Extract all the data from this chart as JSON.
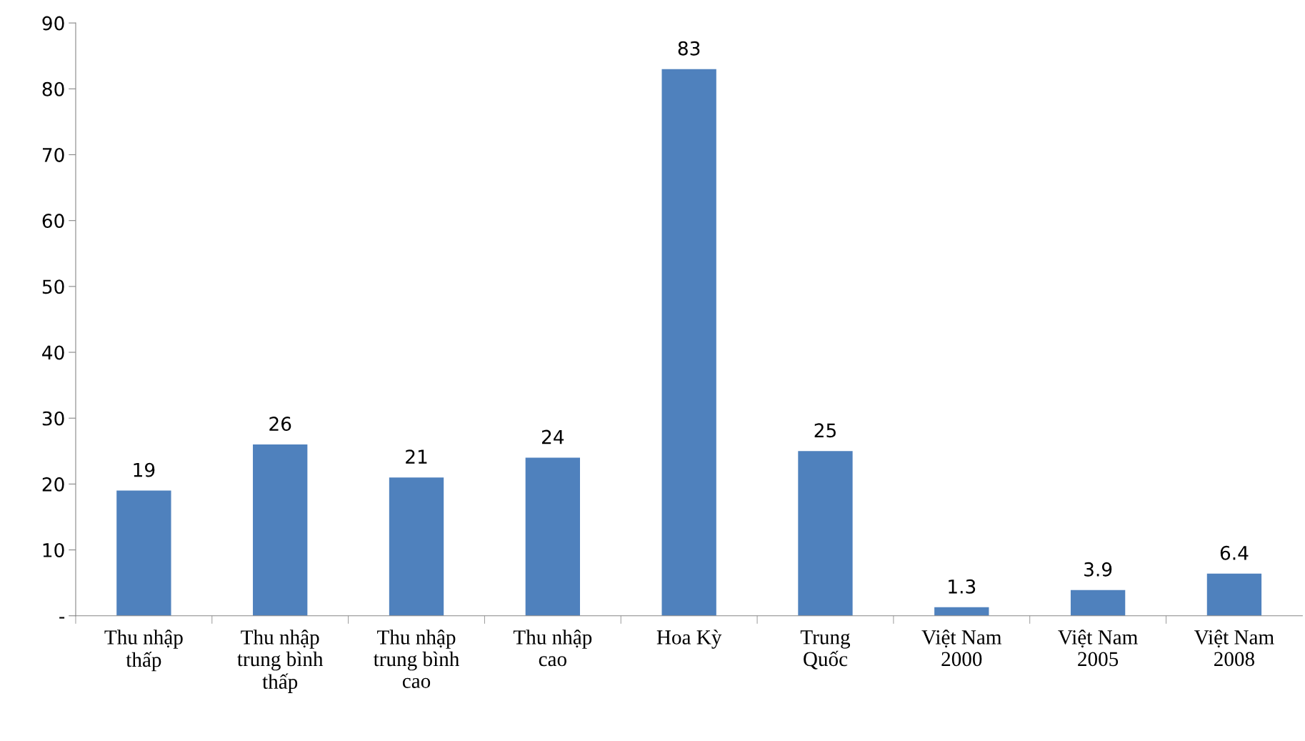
{
  "chart_data": {
    "type": "bar",
    "categories": [
      "Thu nhập\nthấp",
      "Thu nhập\ntrung bình\nthấp",
      "Thu nhập\ntrung bình\ncao",
      "Thu nhập\ncao",
      "Hoa Kỳ",
      "Trung\nQuốc",
      "Việt Nam\n2000",
      "Việt Nam\n2005",
      "Việt Nam\n2008"
    ],
    "values": [
      19,
      26,
      21,
      24,
      83,
      25,
      1.3,
      3.9,
      6.4
    ],
    "color": "#4f81bd",
    "ylim": [
      0,
      90
    ],
    "yticks": [
      {
        "value": 0,
        "label": "-"
      },
      10,
      20,
      30,
      40,
      50,
      60,
      70,
      80,
      90
    ],
    "data_labels": true,
    "grid": false,
    "legend": false
  }
}
